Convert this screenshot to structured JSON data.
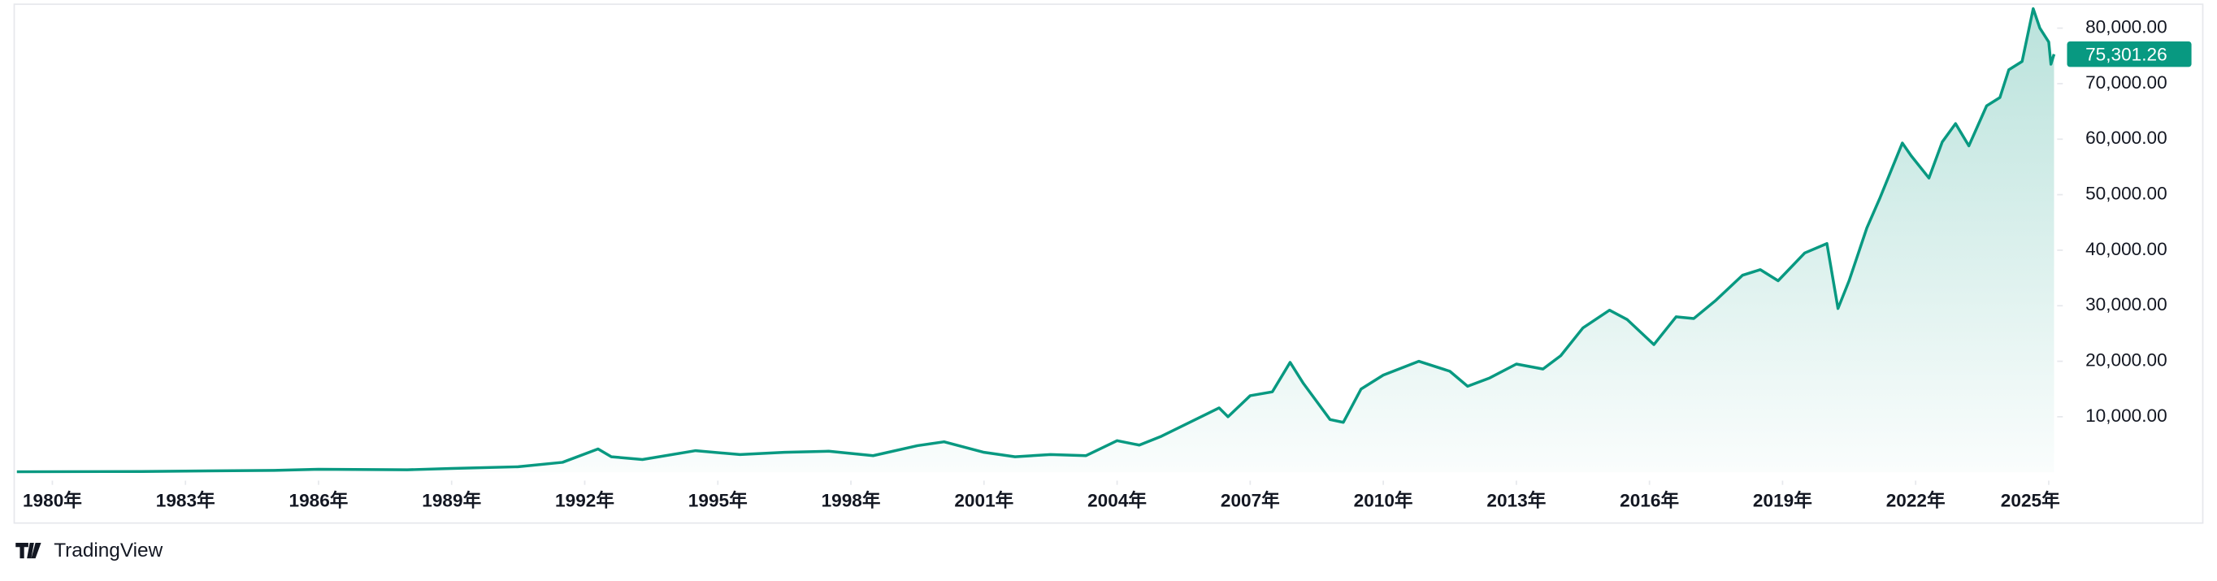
{
  "chart_data": {
    "type": "area",
    "color": "#089981",
    "x": [
      1979.2,
      1982,
      1985,
      1986,
      1988,
      1989,
      1990.5,
      1991.5,
      1992.3,
      1992.6,
      1993.3,
      1994.5,
      1995.5,
      1996.5,
      1997.5,
      1998.5,
      1999.5,
      2000.1,
      2001,
      2001.7,
      2002.5,
      2003.3,
      2004,
      2004.5,
      2005,
      2006.3,
      2006.5,
      2007,
      2007.5,
      2007.9,
      2008.2,
      2008.8,
      2009.1,
      2009.5,
      2010,
      2010.8,
      2011.5,
      2011.9,
      2012.4,
      2013,
      2013.6,
      2014,
      2014.5,
      2015.1,
      2015.5,
      2016.1,
      2016.6,
      2017,
      2017.5,
      2018.1,
      2018.5,
      2018.9,
      2019.5,
      2020,
      2020.25,
      2020.5,
      2020.9,
      2021.2,
      2021.7,
      2021.9,
      2022.3,
      2022.6,
      2022.9,
      2023.2,
      2023.6,
      2023.9,
      2024.1,
      2024.4,
      2024.65,
      2024.8,
      2025.0,
      2025.05,
      2025.12
    ],
    "values": [
      100,
      150,
      350,
      550,
      450,
      700,
      1000,
      1800,
      4200,
      2800,
      2300,
      3900,
      3200,
      3600,
      3800,
      3000,
      4800,
      5500,
      3600,
      2800,
      3200,
      3000,
      5700,
      4900,
      6500,
      11600,
      10000,
      13800,
      14500,
      19800,
      16000,
      9500,
      9000,
      15000,
      17500,
      20000,
      18200,
      15500,
      17000,
      19500,
      18600,
      21000,
      26000,
      29200,
      27500,
      23000,
      28000,
      27700,
      31000,
      35500,
      36500,
      34500,
      39500,
      41200,
      29500,
      34500,
      44000,
      49500,
      59300,
      57000,
      53000,
      59500,
      62800,
      58800,
      66000,
      67500,
      72500,
      74000,
      83500,
      80000,
      77500,
      73500,
      75301.26
    ],
    "xlim": [
      1979.14,
      2025.19
    ],
    "xticks": [
      {
        "value": 1980,
        "label": "1980年"
      },
      {
        "value": 1983,
        "label": "1983年"
      },
      {
        "value": 1986,
        "label": "1986年"
      },
      {
        "value": 1989,
        "label": "1989年"
      },
      {
        "value": 1992,
        "label": "1992年"
      },
      {
        "value": 1995,
        "label": "1995年"
      },
      {
        "value": 1998,
        "label": "1998年"
      },
      {
        "value": 2001,
        "label": "2001年"
      },
      {
        "value": 2004,
        "label": "2004年"
      },
      {
        "value": 2007,
        "label": "2007年"
      },
      {
        "value": 2010,
        "label": "2010年"
      },
      {
        "value": 2013,
        "label": "2013年"
      },
      {
        "value": 2016,
        "label": "2016年"
      },
      {
        "value": 2019,
        "label": "2019年"
      },
      {
        "value": 2022,
        "label": "2022年"
      },
      {
        "value": 2025,
        "label": "2025年"
      }
    ],
    "ylim": [
      -1500,
      84300
    ],
    "yticks": [
      {
        "value": 10000,
        "label": "10,000.00"
      },
      {
        "value": 20000,
        "label": "20,000.00"
      },
      {
        "value": 30000,
        "label": "30,000.00"
      },
      {
        "value": 40000,
        "label": "40,000.00"
      },
      {
        "value": 50000,
        "label": "50,000.00"
      },
      {
        "value": 60000,
        "label": "60,000.00"
      },
      {
        "value": 70000,
        "label": "70,000.00"
      },
      {
        "value": 80000,
        "label": "80,000.00"
      }
    ],
    "last_price": 75301.26,
    "last_price_label": "75,301.26"
  },
  "watermark": "TradingView"
}
